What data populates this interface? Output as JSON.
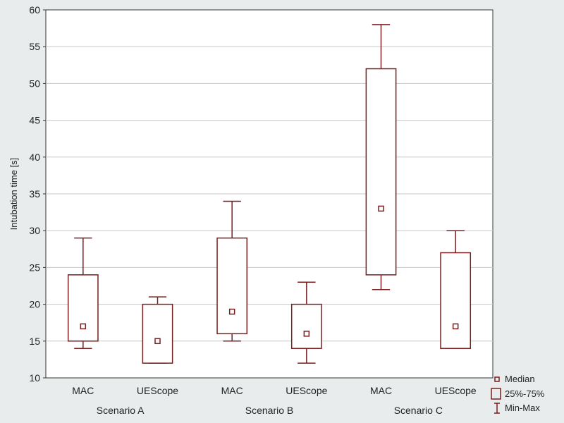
{
  "colors": {
    "box": "#7a1f1f",
    "plot_bg": "#ffffff",
    "page_bg": "#e9ecec",
    "grid": "#c8c8c8",
    "text": "#222222"
  },
  "chart_data": {
    "type": "boxplot",
    "ylabel": "Intubation time [s]",
    "ylim": [
      10,
      60
    ],
    "yticks": [
      10,
      15,
      20,
      25,
      30,
      35,
      40,
      45,
      50,
      55,
      60
    ],
    "grid": true,
    "legend_position": "bottom-right",
    "categories": [
      "MAC",
      "UEScope",
      "MAC",
      "UEScope",
      "MAC",
      "UEScope"
    ],
    "groups": [
      {
        "label": "Scenario A",
        "categories": [
          0,
          1
        ]
      },
      {
        "label": "Scenario B",
        "categories": [
          2,
          3
        ]
      },
      {
        "label": "Scenario C",
        "categories": [
          4,
          5
        ]
      }
    ],
    "boxes": [
      {
        "category": "MAC",
        "group": "Scenario A",
        "min": 14,
        "q1": 15,
        "median": 17,
        "q3": 24,
        "max": 29
      },
      {
        "category": "UEScope",
        "group": "Scenario A",
        "min": 12,
        "q1": 12,
        "median": 15,
        "q3": 20,
        "max": 21
      },
      {
        "category": "MAC",
        "group": "Scenario B",
        "min": 15,
        "q1": 16,
        "median": 19,
        "q3": 29,
        "max": 34
      },
      {
        "category": "UEScope",
        "group": "Scenario B",
        "min": 12,
        "q1": 14,
        "median": 16,
        "q3": 20,
        "max": 23
      },
      {
        "category": "MAC",
        "group": "Scenario C",
        "min": 22,
        "q1": 24,
        "median": 33,
        "q3": 52,
        "max": 58
      },
      {
        "category": "UEScope",
        "group": "Scenario C",
        "min": 14,
        "q1": 14,
        "median": 17,
        "q3": 27,
        "max": 30
      }
    ],
    "legend": [
      "Median",
      "25%-75%",
      "Min-Max"
    ]
  }
}
